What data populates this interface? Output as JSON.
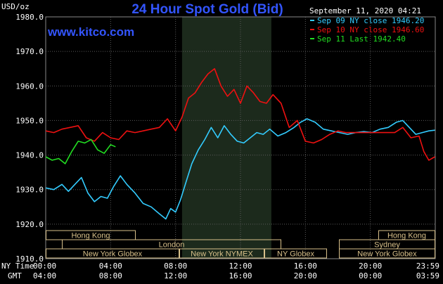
{
  "header": {
    "title": "24 Hour Spot Gold (Bid)",
    "website": "www.kitco.com",
    "unit": "USD/oz",
    "timestamp": "September 11, 2020 04:21"
  },
  "legend": [
    {
      "label": "Sep 09 NY close 1946.20",
      "color": "#33ccff"
    },
    {
      "label": "Sep 10 NY close 1946.60",
      "color": "#ee1111"
    },
    {
      "label": "Sep 11 Last 1942.40",
      "color": "#22dd22"
    }
  ],
  "sessions": [
    {
      "row": 1,
      "label": "Hong Kong"
    },
    {
      "row": 1,
      "label": "Hong Kong"
    },
    {
      "row": 2,
      "label": "London"
    },
    {
      "row": 2,
      "label": "Sydney"
    },
    {
      "row": 3,
      "label": "New York Globex"
    },
    {
      "row": 3,
      "label": "New York NYMEX"
    },
    {
      "row": 3,
      "label": "NY Globex"
    },
    {
      "row": 3,
      "label": "New York Globex"
    }
  ],
  "axis_labels": {
    "ny_time": "NY Time",
    "gmt": "GMT"
  },
  "x_ticks": {
    "ny": [
      "00:00",
      "04:00",
      "08:00",
      "12:00",
      "16:00",
      "20:00",
      "23:59"
    ],
    "gmt": [
      "04:00",
      "08:00",
      "12:00",
      "16:00",
      "20:00",
      "00:00",
      "03:59"
    ]
  },
  "colors": {
    "background": "#000000",
    "grid": "#5a5a5a",
    "highlight_band": "#1c2a1c",
    "session_border": "#d8c08a",
    "blue_title": "#3355ff"
  },
  "chart_data": {
    "type": "line",
    "title": "24 Hour Spot Gold (Bid)",
    "ylabel": "USD/oz",
    "ylim": [
      1910,
      1980
    ],
    "yticks": [
      1910,
      1920,
      1930,
      1940,
      1950,
      1960,
      1970,
      1980
    ],
    "xlim": [
      0,
      24
    ],
    "x_unit": "hours (NY time)",
    "grid": true,
    "legend_position": "top-right",
    "highlight_range": [
      8.4,
      13.9
    ],
    "series": [
      {
        "name": "Sep 09 NY close 1946.20",
        "color": "#33ccff",
        "x": [
          0,
          0.5,
          1,
          1.4,
          1.8,
          2.2,
          2.6,
          3.0,
          3.4,
          3.8,
          4.2,
          4.6,
          5.0,
          5.5,
          6.0,
          6.5,
          7.0,
          7.4,
          7.7,
          8.0,
          8.3,
          8.7,
          9.0,
          9.4,
          9.8,
          10.2,
          10.6,
          11.0,
          11.4,
          11.8,
          12.2,
          12.6,
          13.0,
          13.4,
          13.8,
          14.3,
          14.8,
          15.3,
          15.7,
          16.1,
          16.6,
          17.1,
          17.6,
          18.1,
          18.6,
          19.1,
          19.6,
          20.1,
          20.6,
          21.1,
          21.6,
          22.0,
          22.4,
          22.8,
          23.2,
          23.6,
          23.98
        ],
        "values": [
          1930.5,
          1930.0,
          1931.5,
          1929.5,
          1931.5,
          1933.5,
          1929.0,
          1926.5,
          1928.0,
          1927.5,
          1931.0,
          1934.0,
          1931.5,
          1929.0,
          1926.0,
          1925.0,
          1923.0,
          1921.5,
          1924.5,
          1923.5,
          1927.0,
          1933.0,
          1937.5,
          1941.5,
          1944.5,
          1948.0,
          1945.0,
          1948.5,
          1946.0,
          1944.0,
          1943.5,
          1945.0,
          1946.5,
          1946.0,
          1947.5,
          1945.5,
          1946.5,
          1948.0,
          1949.5,
          1950.5,
          1949.5,
          1947.5,
          1947.0,
          1946.5,
          1946.0,
          1946.5,
          1946.8,
          1946.5,
          1947.5,
          1948.0,
          1949.5,
          1950.0,
          1948.0,
          1946.0,
          1946.5,
          1947.0,
          1947.2
        ]
      },
      {
        "name": "Sep 10 NY close 1946.60",
        "color": "#ee1111",
        "x": [
          0,
          0.5,
          1,
          1.5,
          2.0,
          2.5,
          3.0,
          3.5,
          4.0,
          4.5,
          5.0,
          5.5,
          6.0,
          6.5,
          7.0,
          7.5,
          8.0,
          8.4,
          8.8,
          9.2,
          9.6,
          10.0,
          10.4,
          10.8,
          11.2,
          11.6,
          12.0,
          12.4,
          12.8,
          13.2,
          13.6,
          14.0,
          14.5,
          15.0,
          15.5,
          16.0,
          16.5,
          17.0,
          17.5,
          18.0,
          18.5,
          19.0,
          19.5,
          20.0,
          20.5,
          21.0,
          21.5,
          22.0,
          22.5,
          23.0,
          23.3,
          23.6,
          23.98
        ],
        "values": [
          1947.0,
          1946.5,
          1947.5,
          1948.0,
          1948.5,
          1945.0,
          1944.0,
          1946.5,
          1945.0,
          1944.5,
          1947.0,
          1946.5,
          1947.0,
          1947.5,
          1948.0,
          1950.5,
          1947.0,
          1951.0,
          1956.5,
          1958.0,
          1961.0,
          1963.5,
          1965.0,
          1960.0,
          1957.0,
          1959.0,
          1955.0,
          1960.0,
          1958.0,
          1955.5,
          1955.0,
          1957.5,
          1955.0,
          1948.0,
          1950.0,
          1944.0,
          1943.5,
          1944.5,
          1946.0,
          1947.0,
          1946.5,
          1946.5,
          1946.5,
          1946.5,
          1946.5,
          1946.5,
          1946.5,
          1948.0,
          1945.0,
          1945.5,
          1941.0,
          1938.5,
          1939.5
        ]
      },
      {
        "name": "Sep 11 Last 1942.40",
        "color": "#22dd22",
        "x": [
          0,
          0.4,
          0.8,
          1.2,
          1.6,
          2.0,
          2.4,
          2.8,
          3.2,
          3.6,
          4.0,
          4.3
        ],
        "values": [
          1939.5,
          1938.5,
          1939.0,
          1937.5,
          1941.0,
          1944.0,
          1943.5,
          1944.5,
          1941.5,
          1940.5,
          1943.0,
          1942.4
        ]
      }
    ]
  }
}
